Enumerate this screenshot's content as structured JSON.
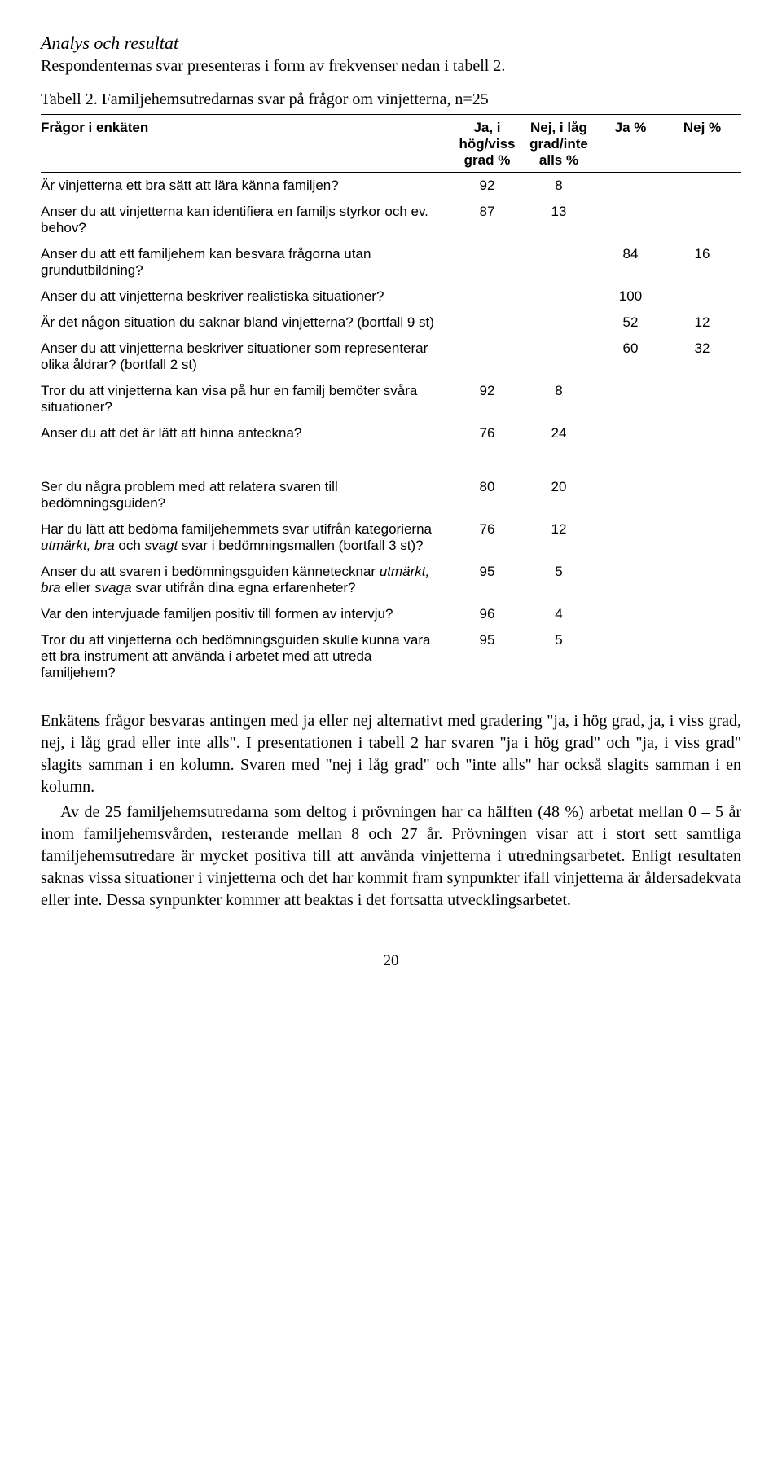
{
  "heading": "Analys och resultat",
  "intro": "Respondenternas svar presenteras i form av frekvenser nedan i tabell 2.",
  "table_caption": "Tabell 2. Familjehemsutredarnas svar på frågor om vinjetterna, n=25",
  "columns": {
    "q": "Frågor i enkäten",
    "c1": "Ja, i hög/viss grad %",
    "c2": "Nej, i låg grad/inte alls %",
    "c3": "Ja %",
    "c4": "Nej %"
  },
  "rows": [
    {
      "q": "Är vinjetterna ett bra sätt att lära känna familjen?",
      "c1": "92",
      "c2": "8",
      "c3": "",
      "c4": ""
    },
    {
      "q": "Anser du att vinjetterna kan identifiera en familjs styrkor och ev. behov?",
      "c1": "87",
      "c2": "13",
      "c3": "",
      "c4": ""
    },
    {
      "q": "Anser du att ett familjehem kan besvara frågorna utan grundutbildning?",
      "c1": "",
      "c2": "",
      "c3": "84",
      "c4": "16"
    },
    {
      "q": "Anser du att vinjetterna beskriver realistiska situationer?",
      "c1": "",
      "c2": "",
      "c3": "100",
      "c4": ""
    },
    {
      "q": "Är det någon situation du saknar bland vinjetterna? (bortfall 9 st)",
      "c1": "",
      "c2": "",
      "c3": "52",
      "c4": "12"
    },
    {
      "q": "Anser du att vinjetterna beskriver situationer som representerar olika åldrar? (bortfall 2 st)",
      "c1": "",
      "c2": "",
      "c3": "60",
      "c4": "32"
    },
    {
      "q": "Tror du att vinjetterna kan visa på hur en familj bemöter svåra situationer?",
      "c1": "92",
      "c2": "8",
      "c3": "",
      "c4": ""
    },
    {
      "q": "Anser du att det är lätt att hinna anteckna?",
      "c1": "76",
      "c2": "24",
      "c3": "",
      "c4": ""
    }
  ],
  "rows2": [
    {
      "q": "Ser du några problem med att relatera svaren till bedömningsguiden?",
      "c1": "80",
      "c2": "20",
      "c3": "",
      "c4": ""
    },
    {
      "q": "Har du lätt att bedöma familjehemmets svar utifrån kategorierna <i>utmärkt, bra</i> och <i>svagt</i> svar i bedömningsmallen (bortfall 3 st)?",
      "c1": "76",
      "c2": "12",
      "c3": "",
      "c4": "",
      "html": true
    },
    {
      "q": "Anser du att svaren i bedömningsguiden kännetecknar <i>utmärkt, bra</i> eller <i>svaga</i> svar utifrån dina egna erfarenheter?",
      "c1": "95",
      "c2": "5",
      "c3": "",
      "c4": "",
      "html": true
    },
    {
      "q": "Var den intervjuade familjen positiv till formen av intervju?",
      "c1": "96",
      "c2": "4",
      "c3": "",
      "c4": ""
    },
    {
      "q": "Tror du att vinjetterna och bedömningsguiden skulle kunna vara ett bra instrument att använda i arbetet med att utreda familjehem?",
      "c1": "95",
      "c2": "5",
      "c3": "",
      "c4": ""
    }
  ],
  "body_p1": "Enkätens frågor besvaras antingen med ja eller nej alternativt med gradering \"ja, i hög grad, ja, i viss grad, nej, i låg grad eller inte alls\". I presentationen i tabell 2 har svaren \"ja i hög grad\" och \"ja, i viss grad\" slagits samman i en kolumn. Svaren med \"nej i låg grad\" och \"inte alls\" har också slagits samman i en kolumn.",
  "body_p2": "Av de 25 familjehemsutredarna som deltog i prövningen har ca hälften (48 %) arbetat mellan 0 – 5 år inom familjehemsvården, resterande mellan 8 och 27 år. Prövningen visar att i stort sett samtliga familjehemsutredare är mycket positiva till att använda vinjetterna i utredningsarbetet. Enligt resultaten saknas vissa situationer i vinjetterna och det har kommit fram synpunkter ifall vinjetterna är åldersadekvata eller inte. Dessa synpunkter kommer att beaktas i det fortsatta utvecklingsarbetet.",
  "page_number": "20"
}
